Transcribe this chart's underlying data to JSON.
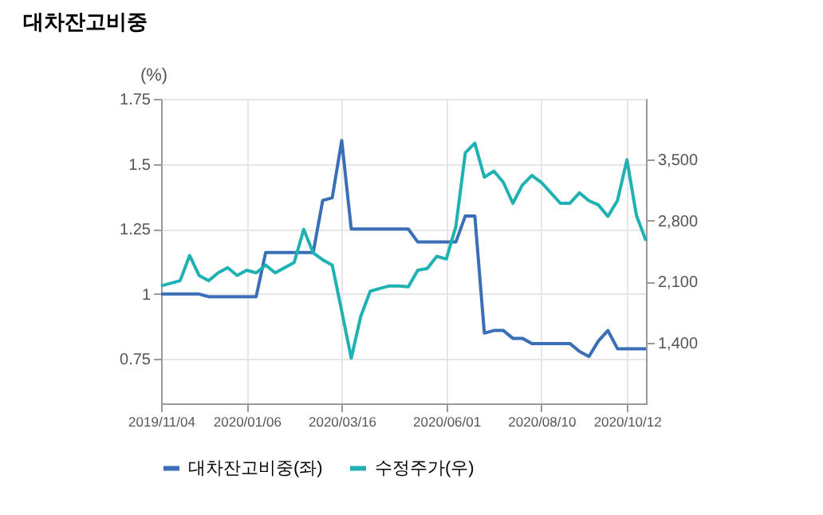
{
  "chart_data": {
    "type": "line",
    "title": "대차잔고비중",
    "ylabel": "(%)",
    "x": [
      "2019-11-04",
      "2019-11-11",
      "2019-11-18",
      "2019-11-25",
      "2019-12-02",
      "2019-12-09",
      "2019-12-16",
      "2019-12-23",
      "2019-12-30",
      "2020-01-06",
      "2020-01-13",
      "2020-01-20",
      "2020-01-27",
      "2020-02-03",
      "2020-02-10",
      "2020-02-17",
      "2020-02-24",
      "2020-03-02",
      "2020-03-09",
      "2020-03-16",
      "2020-03-23",
      "2020-03-30",
      "2020-04-06",
      "2020-04-13",
      "2020-04-20",
      "2020-04-27",
      "2020-05-04",
      "2020-05-11",
      "2020-05-18",
      "2020-05-25",
      "2020-06-01",
      "2020-06-08",
      "2020-06-15",
      "2020-06-22",
      "2020-06-29",
      "2020-07-06",
      "2020-07-13",
      "2020-07-20",
      "2020-07-27",
      "2020-08-03",
      "2020-08-10",
      "2020-08-17",
      "2020-08-24",
      "2020-08-31",
      "2020-09-07",
      "2020-09-14",
      "2020-09-21",
      "2020-09-28",
      "2020-10-05",
      "2020-10-12",
      "2020-10-19",
      "2020-10-26"
    ],
    "series": [
      {
        "name": "대차잔고비중(좌)",
        "color": "#3a6fb8",
        "values": [
          1.0,
          1.0,
          1.0,
          1.0,
          1.0,
          0.99,
          0.99,
          0.99,
          0.99,
          0.99,
          0.99,
          1.16,
          1.16,
          1.16,
          1.16,
          1.16,
          1.16,
          1.36,
          1.37,
          1.59,
          1.25,
          1.25,
          1.25,
          1.25,
          1.25,
          1.25,
          1.25,
          1.2,
          1.2,
          1.2,
          1.2,
          1.2,
          1.3,
          1.3,
          0.85,
          0.86,
          0.86,
          0.83,
          0.83,
          0.81,
          0.81,
          0.81,
          0.81,
          0.81,
          0.78,
          0.76,
          0.82,
          0.86,
          0.79,
          0.79,
          0.79,
          0.79
        ]
      },
      {
        "name": "수정주가(우)",
        "color": "#20b2b2",
        "axis": "y2",
        "values": [
          2050,
          2080,
          2110,
          2400,
          2170,
          2110,
          2200,
          2260,
          2170,
          2230,
          2200,
          2290,
          2200,
          2260,
          2320,
          2700,
          2430,
          2350,
          2290,
          1760,
          1220,
          1700,
          1990,
          2020,
          2050,
          2050,
          2040,
          2230,
          2250,
          2390,
          2360,
          2730,
          3580,
          3690,
          3300,
          3370,
          3240,
          3000,
          3210,
          3320,
          3240,
          3120,
          3000,
          3000,
          3120,
          3030,
          2980,
          2850,
          3030,
          3500,
          2860,
          2570
        ]
      }
    ],
    "xlim": [
      "2019-11-04",
      "2020-10-26"
    ],
    "xticks": [
      {
        "value": "2019-11-04",
        "label": "2019/11/04"
      },
      {
        "value": "2020-01-06",
        "label": "2020/01/06"
      },
      {
        "value": "2020-03-16",
        "label": "2020/03/16"
      },
      {
        "value": "2020-06-01",
        "label": "2020/06/01"
      },
      {
        "value": "2020-08-10",
        "label": "2020/08/10"
      },
      {
        "value": "2020-10-12",
        "label": "2020/10/12"
      }
    ],
    "ylim": [
      0.58,
      1.75
    ],
    "yticks": [
      0.75,
      1,
      1.25,
      1.5,
      1.75
    ],
    "y2lim": [
      700,
      4200
    ],
    "y2ticks": [
      {
        "value": 1400,
        "label": "1,400"
      },
      {
        "value": 2100,
        "label": "2,100"
      },
      {
        "value": 2800,
        "label": "2,800"
      },
      {
        "value": 3500,
        "label": "3,500"
      }
    ],
    "grid": true,
    "legend": "bottom"
  }
}
